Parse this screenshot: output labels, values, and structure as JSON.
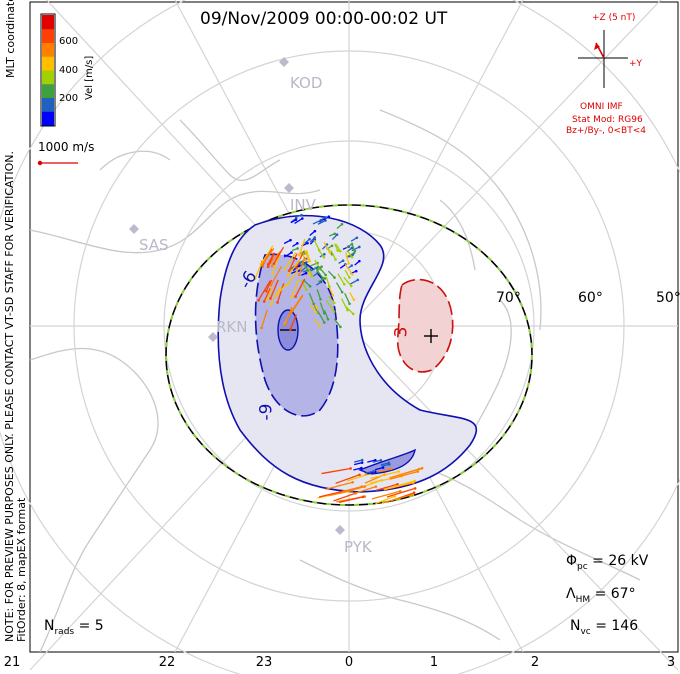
{
  "title": "09/Nov/2009 00:00-00:02 UT",
  "side_note": {
    "line1": "NOTE: FOR PREVIEW PURPOSES ONLY. PLEASE CONTACT VT-SD STAFF FOR VERIFICATION.",
    "line2": "FitOrder: 8, mapEX format",
    "coords": "MLT coordinates"
  },
  "colorbar": {
    "label": "Vel [m/s]",
    "ticks": [
      "200",
      "400",
      "600"
    ],
    "colors": [
      "#0000ff",
      "#2060c0",
      "#40a040",
      "#a0d000",
      "#ffc000",
      "#ff8000",
      "#ff4000",
      "#e00000"
    ]
  },
  "scale_vector": {
    "label": "1000 m/s",
    "color": "#e00000"
  },
  "imf": {
    "axis_z": "+Z (5 nT)",
    "axis_y": "+Y",
    "source": "OMNI IMF",
    "model": "Stat Mod: RG96",
    "condition": "Bz+/By-, 0<BT<4",
    "color": "#e00000"
  },
  "stations": [
    "KOD",
    "INV",
    "SAS",
    "RKN",
    "PYK"
  ],
  "latitude_labels": [
    "70°",
    "60°",
    "50°"
  ],
  "mlt_labels": [
    "21",
    "22",
    "23",
    "0",
    "1",
    "2",
    "3"
  ],
  "potential_labels": {
    "negative": "-6",
    "negative_inner": "-9",
    "positive": "3"
  },
  "stats": {
    "phi_pc": {
      "symbol": "Φ",
      "sub": "pc",
      "value": "= 26 kV"
    },
    "lambda_hm": {
      "symbol": "Λ",
      "sub": "HM",
      "value": "= 67°"
    },
    "n_vc": {
      "symbol": "N",
      "sub": "vc",
      "value": "= 146"
    },
    "n_rads": {
      "symbol": "N",
      "sub": "rads",
      "value": "= 5"
    }
  }
}
